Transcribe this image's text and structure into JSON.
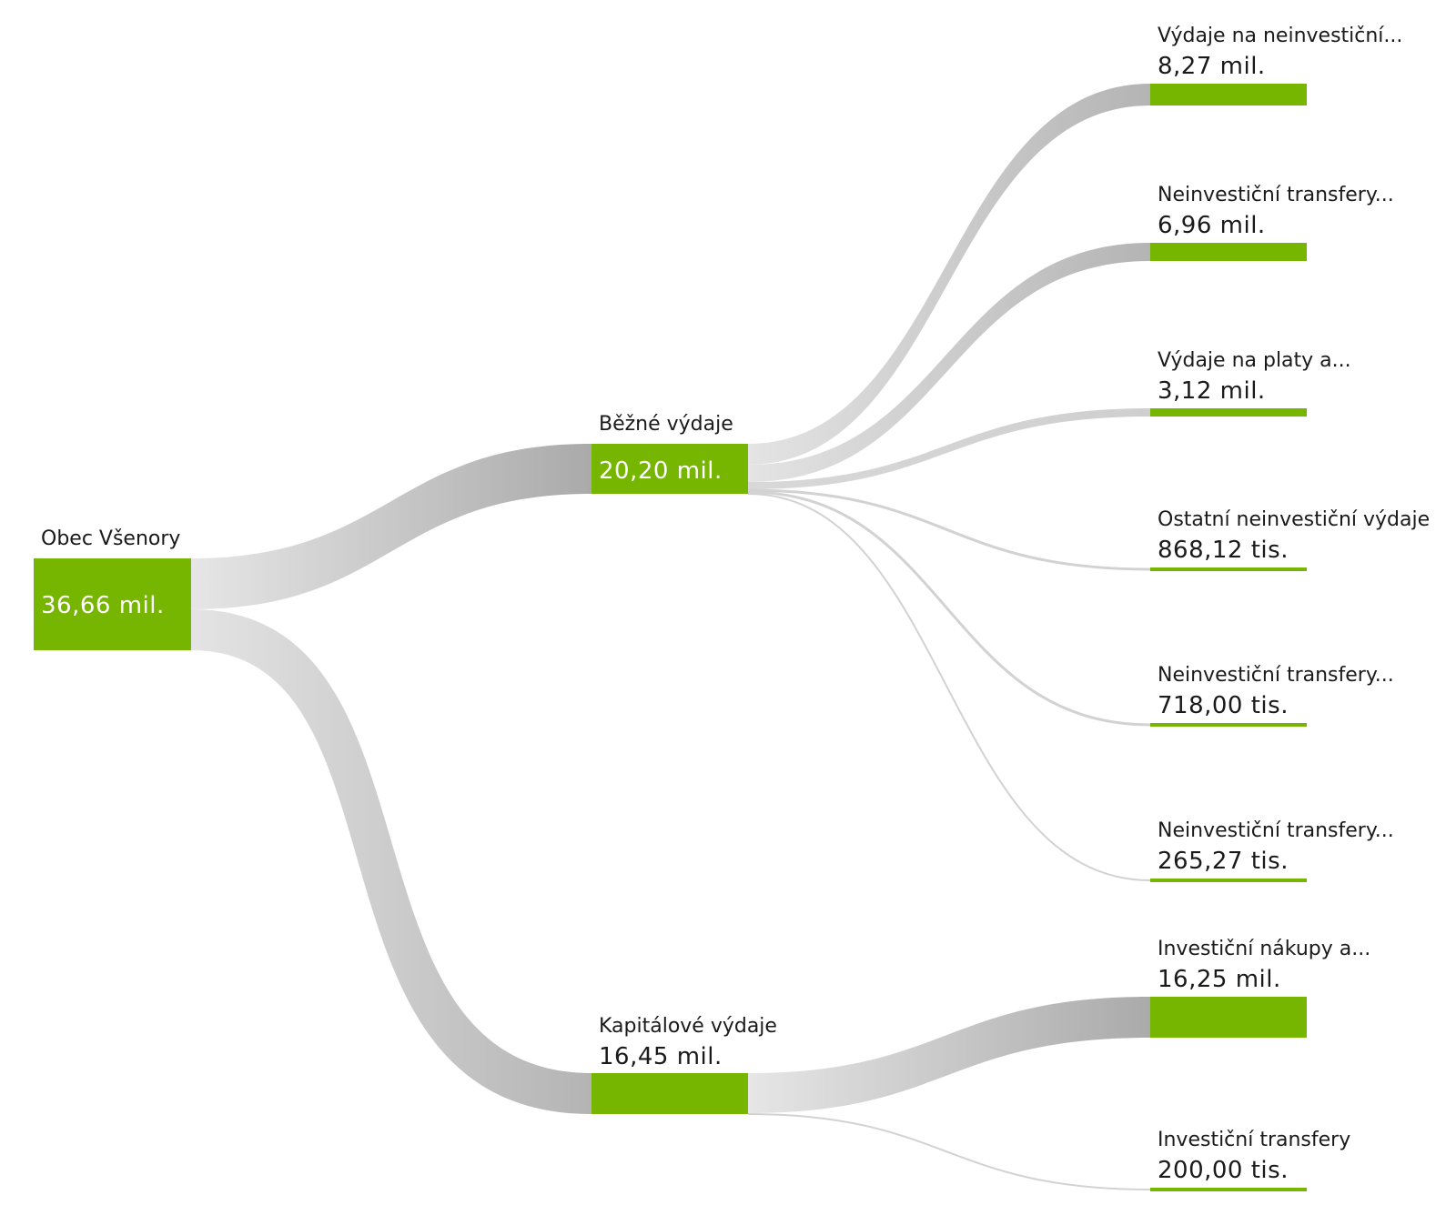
{
  "diagram": {
    "type": "sankey",
    "colors": {
      "node": "#76b500",
      "link_light": "#e6e6e6",
      "link_dark": "#aaaaaa",
      "text": "#1a1a1a",
      "text_inside": "#ffffff"
    },
    "nodes": {
      "root": {
        "name": "Obec Všenory",
        "value_label": "36,66 mil.",
        "value": 36.66
      },
      "bezne": {
        "name": "Běžné výdaje",
        "value_label": "20,20 mil.",
        "value": 20.2
      },
      "kapitalove": {
        "name": "Kapitálové výdaje",
        "value_label": "16,45 mil.",
        "value": 16.45
      },
      "leaf1": {
        "name": "Výdaje na neinvestiční...",
        "value_label": "8,27 mil.",
        "value": 8.27
      },
      "leaf2": {
        "name": "Neinvestiční transfery...",
        "value_label": "6,96 mil.",
        "value": 6.96
      },
      "leaf3": {
        "name": "Výdaje na platy a...",
        "value_label": "3,12 mil.",
        "value": 3.12
      },
      "leaf4": {
        "name": "Ostatní neinvestiční výdaje",
        "value_label": "868,12 tis.",
        "value": 0.86812
      },
      "leaf5": {
        "name": "Neinvestiční transfery...",
        "value_label": "718,00 tis.",
        "value": 0.718
      },
      "leaf6": {
        "name": "Neinvestiční transfery...",
        "value_label": "265,27 tis.",
        "value": 0.26527
      },
      "leaf7": {
        "name": "Investiční nákupy a...",
        "value_label": "16,25 mil.",
        "value": 16.25
      },
      "leaf8": {
        "name": "Investiční transfery",
        "value_label": "200,00 tis.",
        "value": 0.2
      }
    },
    "links": [
      {
        "source": "root",
        "target": "bezne",
        "value": 20.2
      },
      {
        "source": "root",
        "target": "kapitalove",
        "value": 16.45
      },
      {
        "source": "bezne",
        "target": "leaf1",
        "value": 8.27
      },
      {
        "source": "bezne",
        "target": "leaf2",
        "value": 6.96
      },
      {
        "source": "bezne",
        "target": "leaf3",
        "value": 3.12
      },
      {
        "source": "bezne",
        "target": "leaf4",
        "value": 0.86812
      },
      {
        "source": "bezne",
        "target": "leaf5",
        "value": 0.718
      },
      {
        "source": "bezne",
        "target": "leaf6",
        "value": 0.26527
      },
      {
        "source": "kapitalove",
        "target": "leaf7",
        "value": 16.25
      },
      {
        "source": "kapitalove",
        "target": "leaf8",
        "value": 0.2
      }
    ]
  }
}
